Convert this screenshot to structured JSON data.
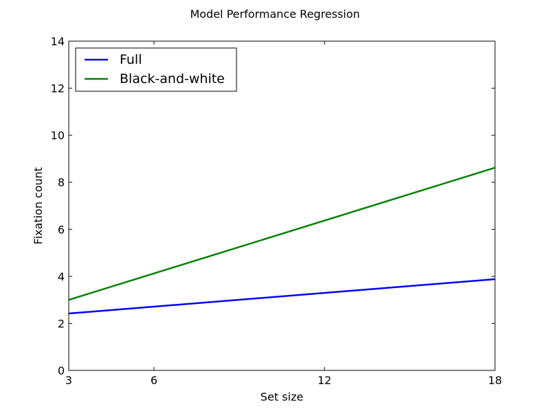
{
  "chart_data": {
    "type": "line",
    "title": "Model Performance Regression",
    "xlabel": "Set size",
    "ylabel": "Fixation count",
    "xlim": [
      3,
      18
    ],
    "ylim": [
      0,
      14
    ],
    "xticks": [
      3,
      6,
      12,
      18
    ],
    "yticks": [
      0,
      2,
      4,
      6,
      8,
      10,
      12,
      14
    ],
    "grid": false,
    "legend_position": "top-left",
    "series": [
      {
        "name": "Full",
        "color": "#0000ff",
        "x": [
          3,
          18
        ],
        "y": [
          2.42,
          3.88
        ]
      },
      {
        "name": "Black-and-white",
        "color": "#008000",
        "x": [
          3,
          18
        ],
        "y": [
          3.0,
          8.62
        ]
      }
    ]
  }
}
